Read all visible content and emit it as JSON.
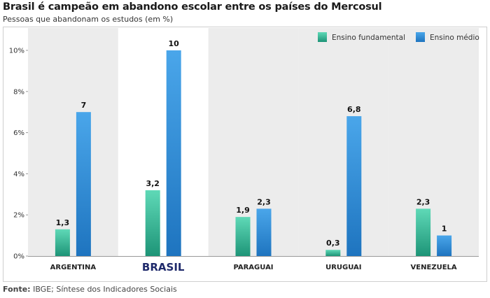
{
  "header": {
    "title": "Brasil é campeão em abandono escolar entre os países do Mercosul",
    "subtitle": "Pessoas que abandonam os estudos (em %)"
  },
  "footer": {
    "source_label": "Fonte:",
    "source_text": "IBGE; Síntese dos Indicadores Sociais"
  },
  "colors": {
    "fundamental_top": "#5fd9b7",
    "fundamental_bottom": "#1d9477",
    "medio_top": "#4aa6ea",
    "medio_bottom": "#1e74bf",
    "band": "#ececec",
    "highlight_label": "#1f2a6b"
  },
  "chart_data": {
    "type": "bar",
    "categories": [
      "ARGENTINA",
      "BRASIL",
      "PARAGUAI",
      "URUGUAI",
      "VENEZUELA"
    ],
    "highlight_category": "BRASIL",
    "series": [
      {
        "name": "Ensino fundamental",
        "values": [
          1.3,
          3.2,
          1.9,
          0.3,
          2.3
        ],
        "labels": [
          "1,3",
          "3,2",
          "1,9",
          "0,3",
          "2,3"
        ]
      },
      {
        "name": "Ensino médio",
        "values": [
          7,
          10,
          2.3,
          6.8,
          1
        ],
        "labels": [
          "7",
          "10",
          "2,3",
          "6,8",
          "1"
        ]
      }
    ],
    "yticks": [
      "0%",
      "2%",
      "4%",
      "6%",
      "8%",
      "10%"
    ],
    "ylim": [
      0,
      10
    ],
    "grid": false,
    "legend": "top-right"
  }
}
